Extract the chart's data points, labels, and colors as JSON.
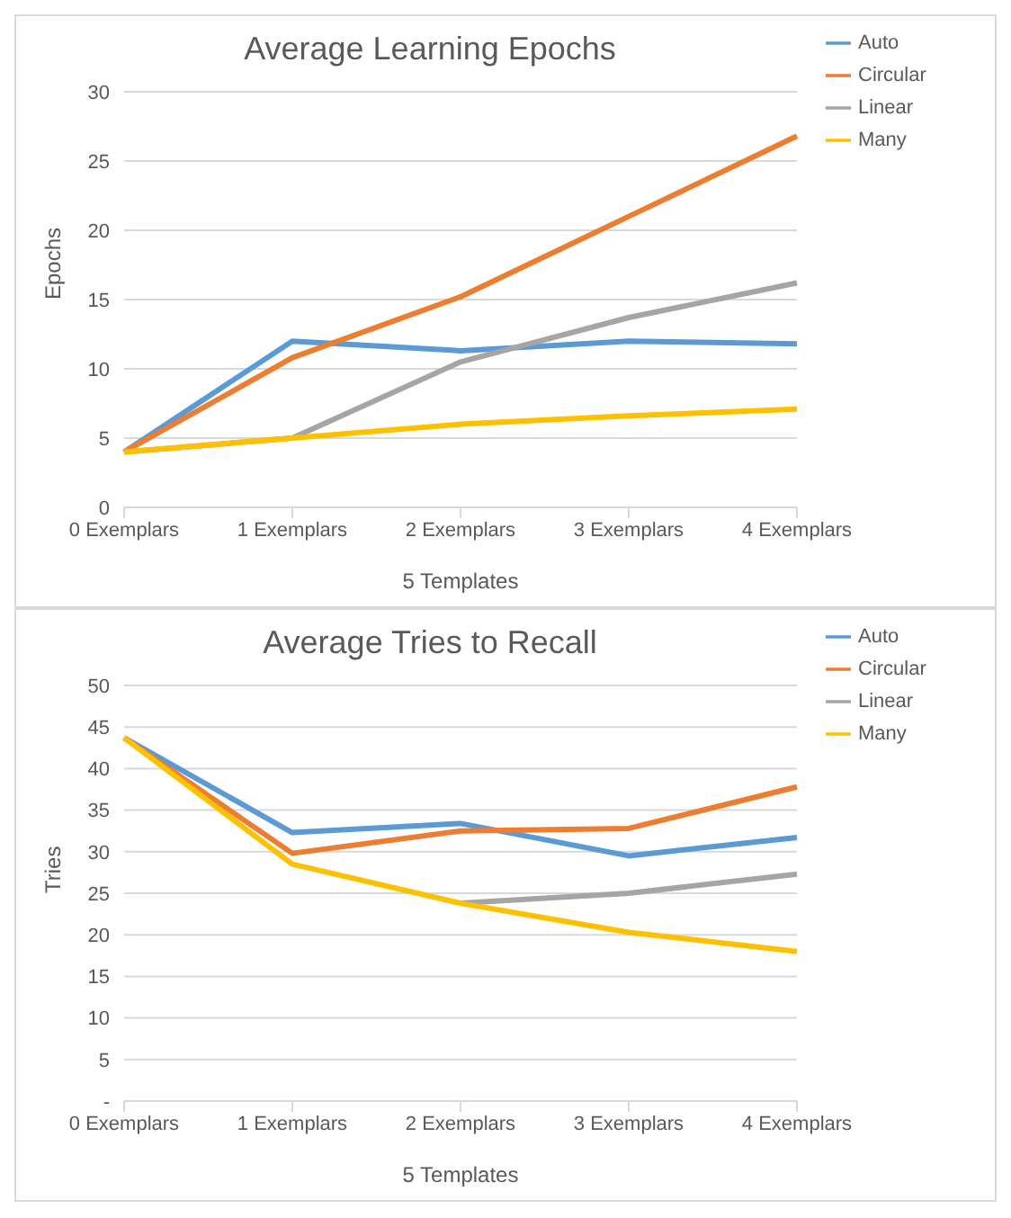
{
  "chart_data": [
    {
      "type": "line",
      "title": "Average Learning Epochs",
      "xlabel": "5 Templates",
      "ylabel": "Epochs",
      "categories": [
        "0 Exemplars",
        "1 Exemplars",
        "2 Exemplars",
        "3 Exemplars",
        "4 Exemplars"
      ],
      "series": [
        {
          "name": "Auto",
          "color": "#5b9bd5",
          "values": [
            4,
            12,
            11.3,
            12,
            11.8
          ]
        },
        {
          "name": "Circular",
          "color": "#ed7d31",
          "values": [
            4,
            10.8,
            15.2,
            21,
            26.8
          ]
        },
        {
          "name": "Linear",
          "color": "#a5a5a5",
          "values": [
            4,
            5,
            10.5,
            13.7,
            16.2
          ]
        },
        {
          "name": "Many",
          "color": "#ffc000",
          "values": [
            4,
            5,
            6,
            6.6,
            7.1
          ]
        }
      ],
      "ylim": [
        0,
        30
      ],
      "yticks": [
        0,
        5,
        10,
        15,
        20,
        25,
        30
      ],
      "grid": "y",
      "legend": "top right",
      "marker": "none",
      "line_style": "solid"
    },
    {
      "type": "line",
      "title": "Average Tries to Recall",
      "xlabel": "5 Templates",
      "ylabel": "Tries",
      "categories": [
        "0 Exemplars",
        "1 Exemplars",
        "2 Exemplars",
        "3 Exemplars",
        "4 Exemplars"
      ],
      "series": [
        {
          "name": "Auto",
          "color": "#5b9bd5",
          "values": [
            43.7,
            32.3,
            33.4,
            29.5,
            31.7
          ]
        },
        {
          "name": "Circular",
          "color": "#ed7d31",
          "values": [
            43.7,
            29.8,
            32.5,
            32.8,
            37.8
          ]
        },
        {
          "name": "Linear",
          "color": "#a5a5a5",
          "values": [
            null,
            null,
            23.8,
            25,
            27.3
          ]
        },
        {
          "name": "Many",
          "color": "#ffc000",
          "values": [
            43.7,
            28.5,
            23.8,
            20.3,
            18
          ]
        }
      ],
      "ylim": [
        0,
        50
      ],
      "yticks": [
        {
          "value": 0,
          "label": "-"
        },
        5,
        10,
        15,
        20,
        25,
        30,
        35,
        40,
        45,
        50
      ],
      "grid": "y",
      "legend": "top right",
      "marker": "none",
      "line_style": "solid"
    }
  ]
}
